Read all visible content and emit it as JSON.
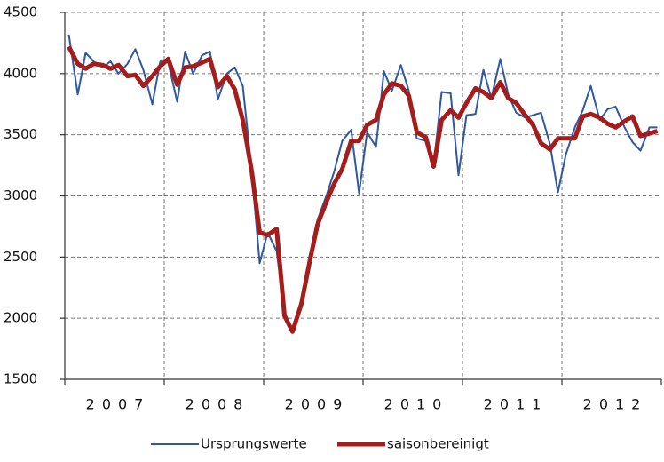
{
  "chart_data": {
    "type": "line",
    "x": [
      2007.04,
      2007.13,
      2007.21,
      2007.29,
      2007.38,
      2007.46,
      2007.54,
      2007.63,
      2007.71,
      2007.79,
      2007.88,
      2007.96,
      2008.04,
      2008.13,
      2008.21,
      2008.29,
      2008.38,
      2008.46,
      2008.54,
      2008.63,
      2008.71,
      2008.79,
      2008.88,
      2008.96,
      2009.04,
      2009.13,
      2009.21,
      2009.29,
      2009.38,
      2009.46,
      2009.54,
      2009.63,
      2009.71,
      2009.79,
      2009.88,
      2009.96,
      2010.04,
      2010.13,
      2010.21,
      2010.29,
      2010.38,
      2010.46,
      2010.54,
      2010.63,
      2010.71,
      2010.79,
      2010.88,
      2010.96,
      2011.04,
      2011.13,
      2011.21,
      2011.29,
      2011.38,
      2011.46,
      2011.54,
      2011.63,
      2011.71,
      2011.79,
      2011.88,
      2011.96,
      2012.04,
      2012.13,
      2012.21,
      2012.29,
      2012.38,
      2012.46,
      2012.54,
      2012.63,
      2012.71,
      2012.79,
      2012.88,
      2012.96
    ],
    "series": [
      {
        "name": "Ursprungswerte",
        "color": "#2e58a0",
        "width": 2,
        "values": [
          4320,
          3830,
          4170,
          4100,
          4050,
          4100,
          4000,
          4080,
          4200,
          4030,
          3750,
          4100,
          4090,
          3770,
          4180,
          4000,
          4150,
          4180,
          3790,
          4000,
          4050,
          3900,
          3200,
          2450,
          2700,
          2550,
          2050,
          1900,
          2150,
          2500,
          2800,
          3000,
          3200,
          3450,
          3540,
          3020,
          3520,
          3400,
          4020,
          3860,
          4070,
          3860,
          3470,
          3450,
          3250,
          3850,
          3840,
          3170,
          3660,
          3670,
          4030,
          3800,
          4120,
          3830,
          3680,
          3640,
          3660,
          3680,
          3420,
          3030,
          3340,
          3560,
          3700,
          3900,
          3620,
          3710,
          3730,
          3560,
          3440,
          3370,
          3560,
          3560
        ]
      },
      {
        "name": "saisonbereinigt",
        "color": "#a31d1d",
        "width": 5,
        "values": [
          4220,
          4080,
          4040,
          4080,
          4070,
          4040,
          4070,
          3980,
          3990,
          3900,
          3980,
          4060,
          4120,
          3910,
          4050,
          4060,
          4090,
          4120,
          3890,
          3980,
          3870,
          3620,
          3200,
          2700,
          2680,
          2730,
          2020,
          1890,
          2120,
          2450,
          2760,
          2950,
          3100,
          3220,
          3450,
          3450,
          3580,
          3620,
          3830,
          3920,
          3900,
          3820,
          3520,
          3480,
          3240,
          3620,
          3700,
          3640,
          3760,
          3880,
          3850,
          3800,
          3930,
          3800,
          3760,
          3660,
          3580,
          3430,
          3380,
          3470,
          3470,
          3470,
          3650,
          3670,
          3640,
          3590,
          3560,
          3610,
          3650,
          3490,
          3510,
          3530
        ]
      }
    ],
    "xlim": [
      2007,
      2013
    ],
    "xticks": [
      2007,
      2008,
      2009,
      2010,
      2011,
      2012,
      2013
    ],
    "year_labels": [
      {
        "value": 2007.5,
        "label": "2007"
      },
      {
        "value": 2008.5,
        "label": "2008"
      },
      {
        "value": 2009.5,
        "label": "2009"
      },
      {
        "value": 2010.5,
        "label": "2010"
      },
      {
        "value": 2011.5,
        "label": "2011"
      },
      {
        "value": 2012.5,
        "label": "2012"
      }
    ],
    "ylim": [
      1500,
      4500
    ],
    "yticks": [
      1500,
      2000,
      2500,
      3000,
      3500,
      4000,
      4500
    ],
    "grid": true,
    "legend": "bottom"
  }
}
